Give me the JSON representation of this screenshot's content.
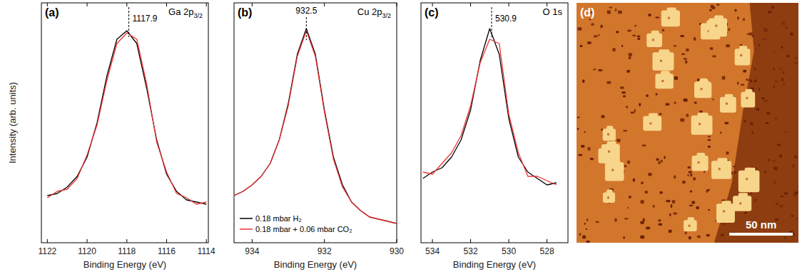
{
  "chart_data": [
    {
      "type": "line",
      "panel_label": "(a)",
      "title": "Ga 2p3/2",
      "xlabel": "Binding Energy (eV)",
      "ylabel": "Intensity (arb. units)",
      "tick_labels": "x",
      "xlim": [
        1122.3,
        1113.9
      ],
      "xticks": [
        1122,
        1120,
        1118,
        1116,
        1114
      ],
      "ylim": [
        0,
        1.12
      ],
      "x": [
        1122,
        1121.5,
        1121,
        1120.5,
        1120,
        1119.5,
        1119,
        1118.5,
        1118,
        1117.5,
        1117,
        1116.5,
        1116,
        1115.5,
        1115,
        1114.5,
        1114
      ],
      "series": [
        {
          "name": "0.18 mbar H₂",
          "color": "#000000",
          "values": [
            0.22,
            0.23,
            0.26,
            0.31,
            0.4,
            0.56,
            0.78,
            0.95,
            0.99,
            0.93,
            0.72,
            0.48,
            0.32,
            0.24,
            0.2,
            0.19,
            0.18
          ]
        },
        {
          "name": "0.18 mbar + 0.06 mbar CO₂",
          "color": "#ee3333",
          "values": [
            0.21,
            0.24,
            0.25,
            0.3,
            0.41,
            0.55,
            0.76,
            0.93,
            0.98,
            0.95,
            0.74,
            0.47,
            0.33,
            0.23,
            0.21,
            0.18,
            0.19
          ]
        }
      ],
      "annotations": [
        {
          "text": "1117.9",
          "x": 1117.9
        }
      ]
    },
    {
      "type": "line",
      "panel_label": "(b)",
      "title": "Cu 2p3/2",
      "xlabel": "Binding Energy (eV)",
      "tick_labels": "x",
      "legend": "lower left",
      "xlim": [
        934.5,
        930
      ],
      "xticks": [
        934,
        932,
        930
      ],
      "ylim": [
        0,
        1.12
      ],
      "x": [
        934.5,
        934.25,
        934,
        933.75,
        933.5,
        933.25,
        933,
        932.75,
        932.5,
        932.25,
        932,
        931.75,
        931.5,
        931.25,
        931,
        930.75,
        930.5,
        930.25,
        930
      ],
      "series": [
        {
          "name": "0.18 mbar H₂",
          "color": "#000000",
          "values": [
            0.22,
            0.24,
            0.27,
            0.31,
            0.37,
            0.48,
            0.65,
            0.88,
            1.0,
            0.88,
            0.62,
            0.4,
            0.27,
            0.19,
            0.15,
            0.12,
            0.11,
            0.1,
            0.09
          ]
        },
        {
          "name": "0.18 mbar + 0.06 mbar CO₂",
          "color": "#ee3333",
          "values": [
            0.22,
            0.24,
            0.27,
            0.31,
            0.37,
            0.48,
            0.64,
            0.87,
            0.99,
            0.87,
            0.61,
            0.39,
            0.26,
            0.19,
            0.15,
            0.12,
            0.11,
            0.1,
            0.09
          ]
        }
      ],
      "annotations": [
        {
          "text": "932.5",
          "x": 932.5
        }
      ]
    },
    {
      "type": "line",
      "panel_label": "(c)",
      "title": "O 1s",
      "xlabel": "Binding Energy (eV)",
      "tick_labels": "x",
      "xlim": [
        534.6,
        526.9
      ],
      "xticks": [
        534,
        532,
        530,
        528
      ],
      "ylim": [
        0,
        1.12
      ],
      "x": [
        534.5,
        534,
        533.5,
        533,
        532.5,
        532,
        531.5,
        531,
        530.5,
        530,
        529.5,
        529,
        528.5,
        528,
        527.5
      ],
      "series": [
        {
          "name": "0.18 mbar H₂",
          "color": "#000000",
          "values": [
            0.3,
            0.33,
            0.35,
            0.4,
            0.48,
            0.62,
            0.85,
            1.0,
            0.88,
            0.58,
            0.4,
            0.33,
            0.3,
            0.27,
            0.28
          ]
        },
        {
          "name": "0.18 mbar + 0.06 mbar CO₂",
          "color": "#ee3333",
          "values": [
            0.33,
            0.32,
            0.37,
            0.42,
            0.5,
            0.64,
            0.84,
            0.95,
            0.93,
            0.6,
            0.42,
            0.31,
            0.31,
            0.29,
            0.27
          ]
        }
      ],
      "annotations": [
        {
          "text": "530.9",
          "x": 530.9
        }
      ]
    },
    {
      "type": "image",
      "panel_label": "(d)",
      "tick_labels": false,
      "xlim": [
        0,
        175
      ],
      "scale_bar": {
        "value": 50,
        "label": "50 nm"
      }
    }
  ]
}
